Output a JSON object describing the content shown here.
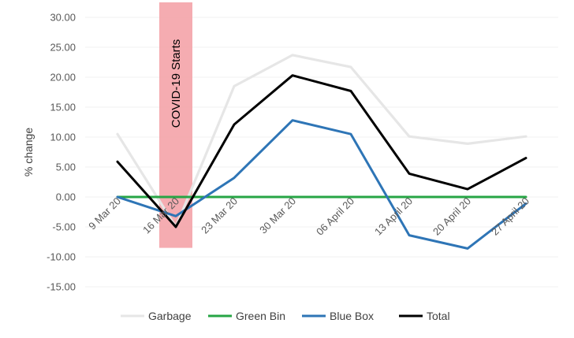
{
  "chart_data": {
    "type": "line",
    "title": "",
    "xlabel": "",
    "ylabel": "% change",
    "ylim": [
      -15,
      30
    ],
    "yticks": [
      30,
      25,
      20,
      15,
      10,
      5,
      0,
      -5,
      -10,
      -15
    ],
    "ytick_labels": [
      "30.00",
      "25.00",
      "20.00",
      "15.00",
      "10.00",
      "5.00",
      "0.00",
      "-5.00",
      "-10.00",
      "-15.00"
    ],
    "categories": [
      "9 Mar 20",
      "16 Mar 20",
      "23 Mar 20",
      "30 Mar 20",
      "06 April 20",
      "13 April 20",
      "20 April 20",
      "27 April 20"
    ],
    "series": [
      {
        "name": "Garbage",
        "color": "#e6e6e6",
        "values": [
          10.5,
          -5.0,
          18.5,
          23.7,
          21.7,
          10.1,
          8.9,
          10.1
        ]
      },
      {
        "name": "Green Bin",
        "color": "#27a545",
        "values": [
          0,
          0,
          0,
          0,
          0,
          0,
          0,
          0
        ]
      },
      {
        "name": "Blue Box",
        "color": "#2e75b6",
        "values": [
          0,
          -3.2,
          3.2,
          12.8,
          10.5,
          -6.4,
          -8.6,
          -1.1
        ]
      },
      {
        "name": "Total",
        "color": "#000000",
        "values": [
          5.9,
          -5.0,
          12.1,
          20.3,
          17.7,
          3.9,
          1.3,
          6.5
        ]
      }
    ],
    "annotation": {
      "label": "COVID-19 Starts",
      "color": "#f4a3a8",
      "x_category": "16 Mar 20",
      "y_range": [
        -8.5,
        32.5
      ]
    },
    "grid": true,
    "legend_position": "bottom"
  }
}
